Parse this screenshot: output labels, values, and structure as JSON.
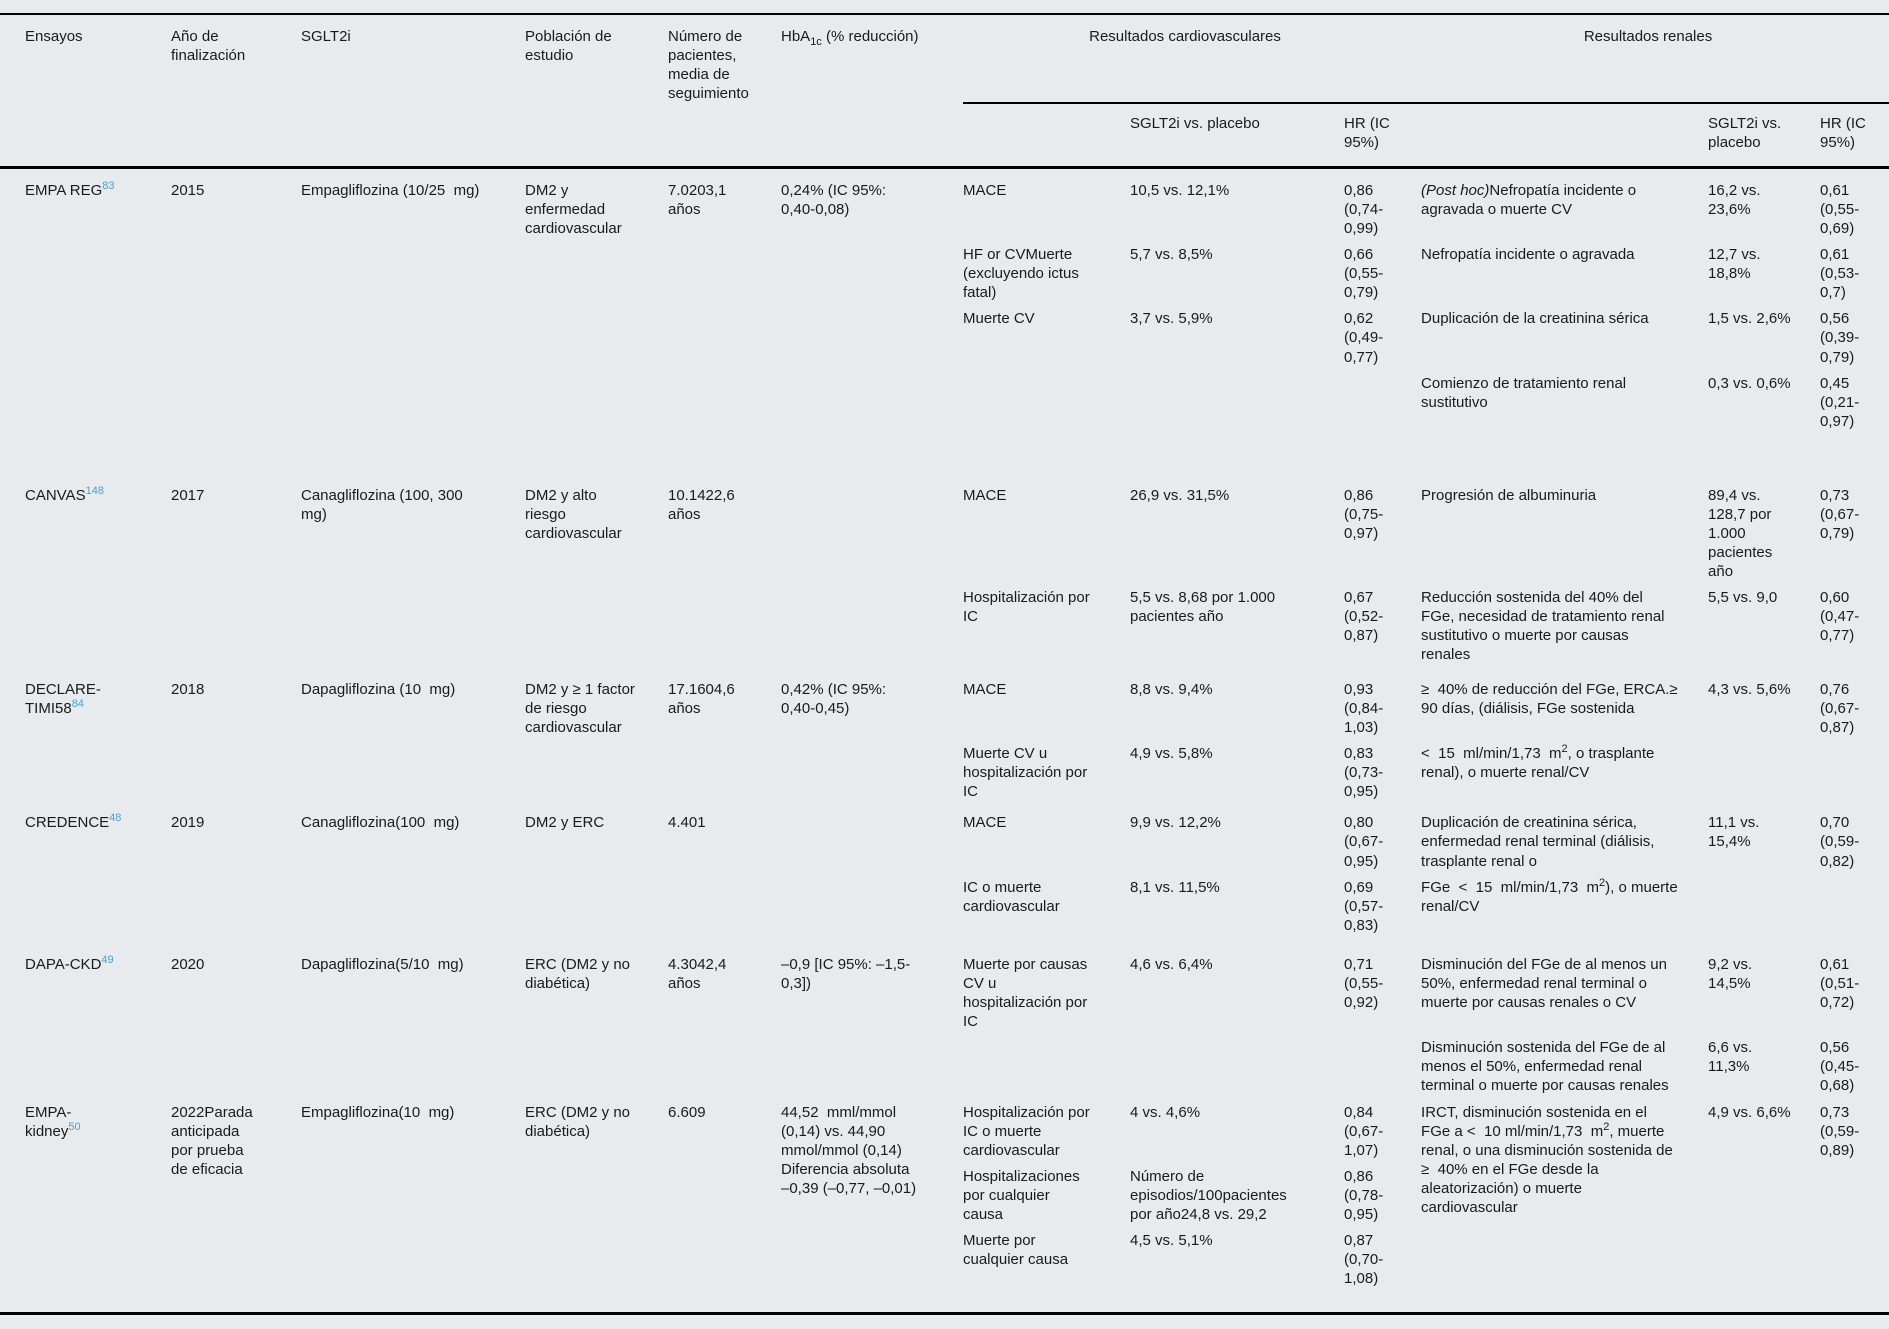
{
  "colors": {
    "background": "#e7ebee",
    "text": "#1a1a1a",
    "rule": "#000000",
    "reference_link": "#41a3da"
  },
  "table": {
    "columns": {
      "ensayos": "Ensayos",
      "ano": "Año de finalización",
      "sglt2i": "SGLT2i",
      "poblacion": "Población de estudio",
      "numero": "Número de pacientes, media de seguimiento",
      "hba1c": "HbA~{1c} (% reducción)",
      "cv_group": "Resultados cardiovasculares",
      "renal_group": "Resultados renales",
      "vs_placebo": "SGLT2i vs. placebo",
      "hr": "HR (IC 95%)"
    },
    "trials": [
      {
        "name": "EMPA REG",
        "ref": "83",
        "year": "2015",
        "drug": "Empagliflozina (10/25  mg)",
        "population": "DM2 y enfermedad cardiovascular",
        "patients": "7.0203,1 años",
        "hba1c": "0,24% (IC 95%: 0,40-0,08)",
        "rows": [
          {
            "cv": [
              "MACE",
              "10,5 vs. 12,1%",
              "0,86 (0,74-0,99)"
            ],
            "renal": [
              "*{(Post hoc)}Nefropatía incidente o agravada o muerte CV",
              "16,2 vs. 23,6%",
              "0,61 (0,55-0,69)"
            ]
          },
          {
            "cv": [
              "HF or CVMuerte (excluyendo ictus fatal)",
              "5,7 vs. 8,5%",
              "0,66 (0,55-0,79)"
            ],
            "renal": [
              "Nefropatía incidente o agravada",
              "12,7 vs. 18,8%",
              "0,61 (0,53-0,7)"
            ]
          },
          {
            "cv": [
              "Muerte CV",
              "3,7 vs. 5,9%",
              "0,62 (0,49-0,77)"
            ],
            "renal": [
              "Duplicación de la creatinina sérica",
              "1,5 vs. 2,6%",
              "0,56 (0,39-0,79)"
            ]
          },
          {
            "cv": [
              "",
              "",
              ""
            ],
            "renal": [
              "Comienzo de tratamiento renal sustitutivo",
              "0,3 vs. 0,6%",
              "0,45 (0,21-0,97)"
            ]
          }
        ]
      },
      {
        "name": "CANVAS",
        "ref": "148",
        "year": "2017",
        "drug": "Canagliflozina (100, 300  mg)",
        "population": "DM2 y alto riesgo cardiovascular",
        "patients": "10.1422,6 años",
        "hba1c": "",
        "rows": [
          {
            "cv": [
              "MACE",
              "26,9 vs. 31,5%",
              "0,86 (0,75-0,97)"
            ],
            "renal": [
              "Progresión de albuminuria",
              "89,4 vs. 128,7 por 1.000 pacientes año",
              "0,73 (0,67-0,79)"
            ]
          },
          {
            "cv": [
              "Hospitalización por IC",
              "5,5 vs. 8,68 por 1.000 pacientes año",
              "0,67 (0,52-0,87)"
            ],
            "renal": [
              "Reducción sostenida del 40% del FGe, necesidad de tratamiento renal sustitutivo o muerte por causas renales",
              "5,5 vs. 9,0",
              "0,60 (0,47-0,77)"
            ]
          }
        ]
      },
      {
        "name": "DECLARE-TIMI58",
        "ref": "84",
        "year": "2018",
        "drug": "Dapagliflozina (10  mg)",
        "population": "DM2 y ≥ 1 factor de riesgo cardiovascular",
        "patients": "17.1604,6 años",
        "hba1c": "0,42% (IC 95%: 0,40-0,45)",
        "rows": [
          {
            "cv": [
              "MACE",
              "8,8 vs. 9,4%",
              "0,93 (0,84-1,03)"
            ],
            "renal": [
              "≥  40% de reducción del FGe, ERCA.≥  90 días, (diálisis, FGe sostenida",
              "4,3 vs. 5,6%",
              "0,76 (0,67-0,87)"
            ]
          },
          {
            "cv": [
              "Muerte CV u hospitalización por IC",
              "4,9 vs. 5,8%",
              "0,83 (0,73-0,95)"
            ],
            "renal": [
              "<  15  ml/min/1,73  m^{2}, o trasplante renal), o muerte renal/CV",
              "",
              ""
            ]
          }
        ]
      },
      {
        "name": "CREDENCE",
        "ref": "48",
        "year": "2019",
        "drug": "Canagliflozina(100  mg)",
        "population": "DM2 y ERC",
        "patients": "4.401",
        "hba1c": "",
        "rows": [
          {
            "cv": [
              "MACE",
              "9,9 vs. 12,2%",
              "0,80 (0,67-0,95)"
            ],
            "renal": [
              "Duplicación de creatinina sérica, enfermedad renal terminal (diálisis, trasplante renal o",
              "11,1 vs. 15,4%",
              "0,70 (0,59-0,82)"
            ]
          },
          {
            "cv": [
              "IC o muerte cardiovascular",
              "8,1 vs. 11,5%",
              "0,69 (0,57-0,83)"
            ],
            "renal": [
              "FGe  <  15  ml/min/1,73  m^{2}), o muerte renal/CV",
              "",
              ""
            ]
          }
        ]
      },
      {
        "name": "DAPA-CKD",
        "ref": "49",
        "year": "2020",
        "drug": "Dapagliflozina(5/10  mg)",
        "population": "ERC (DM2 y no diabética)",
        "patients": "4.3042,4 años",
        "hba1c": "–0,9 [IC 95%: –1,5-0,3])",
        "rows": [
          {
            "cv": [
              "Muerte por causas CV u hospitalización por IC",
              "4,6 vs. 6,4%",
              "0,71 (0,55-0,92)"
            ],
            "renal": [
              "Disminución del FGe de al menos un 50%, enfermedad renal terminal o muerte por causas renales o CV",
              "9,2 vs. 14,5%",
              "0,61 (0,51-0,72)"
            ]
          },
          {
            "cv": [
              "",
              "",
              ""
            ],
            "renal": [
              "Disminución sostenida del FGe de al menos el 50%, enfermedad renal terminal o muerte por causas renales",
              "6,6 vs. 11,3%",
              "0,56 (0,45-0,68)"
            ]
          }
        ]
      },
      {
        "name": "EMPA-\nkidney",
        "ref": "50",
        "year": "2022Parada anticipada por prueba de eficacia",
        "drug": "Empagliflozina(10  mg)",
        "population": "ERC (DM2 y no diabética)",
        "patients": "6.609",
        "hba1c": "44,52  mml/mmol (0,14) vs. 44,90  mmol/mmol (0,14) Diferencia absoluta –0,39 (–0,77, –0,01)",
        "rows": [
          {
            "cv": [
              "Hospitalización por IC o muerte cardiovascular",
              "4 vs. 4,6%",
              "0,84 (0,67-1,07)"
            ],
            "renal": [
              "IRCT, disminución sostenida en el FGe a <  10 ml/min/1,73  m^{2}, muerte renal, o una disminución sostenida de ≥  40% en el FGe desde la aleatorización) o muerte cardiovascular",
              "4,9 vs. 6,6%",
              "0,73 (0,59-0,89)"
            ]
          },
          {
            "cv": [
              "Hospitalizaciones por cualquier causa",
              "Número de episodios/100pacientes por año24,8 vs. 29,2",
              "0,86 (0,78-0,95)"
            ]
          },
          {
            "cv": [
              "Muerte por cualquier causa",
              "4,5 vs. 5,1%",
              "0,87 (0,70-1,08)"
            ]
          }
        ]
      }
    ]
  }
}
